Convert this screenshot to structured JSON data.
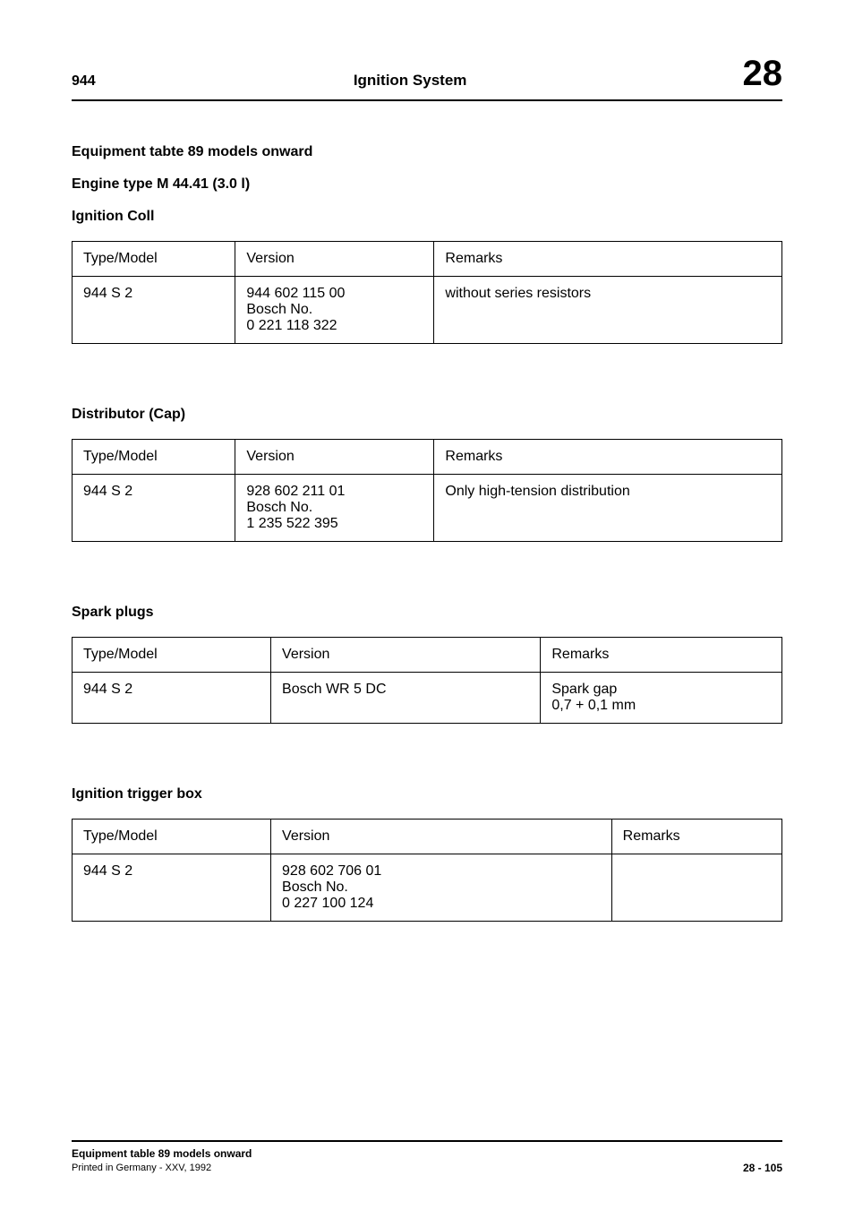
{
  "header": {
    "model_number": "944",
    "center_title": "Ignition System",
    "chapter_number": "28"
  },
  "section_heading": "Equipment tabte 89 models onward",
  "engine_line": "Engine type M 44.41 (3.0 l)",
  "tables": {
    "ignition_coil": {
      "title": "Ignition Coll",
      "columns": [
        "Type/Model",
        "Version",
        "Remarks"
      ],
      "row": {
        "type_model": "944 S 2",
        "version_line1": "944 602 115 00",
        "version_line2": "Bosch No.",
        "version_line3": "0 221 118 322",
        "remarks": "without series resistors"
      }
    },
    "distributor": {
      "title": "Distributor (Cap)",
      "columns": [
        "Type/Model",
        "Version",
        "Remarks"
      ],
      "row": {
        "type_model": "944 S 2",
        "version_line1": "928 602 211 01",
        "version_line2": "Bosch No.",
        "version_line3": "1 235 522 395",
        "remarks": "Only high-tension distribution"
      }
    },
    "spark_plugs": {
      "title": "Spark plugs",
      "columns": [
        "Type/Model",
        "Version",
        "Remarks"
      ],
      "row": {
        "type_model": "944 S 2",
        "version": "Bosch WR 5 DC",
        "remarks_line1": "Spark gap",
        "remarks_line2": "0,7 + 0,1 mm"
      }
    },
    "ignition_trigger": {
      "title": "Ignition trigger box",
      "columns": [
        "Type/Model",
        "Version",
        "Remarks"
      ],
      "row": {
        "type_model": "944 S 2",
        "version_line1": "928 602 706 01",
        "version_line2": "Bosch No.",
        "version_line3": "0 227 100 124",
        "remarks": ""
      }
    }
  },
  "footer": {
    "title": "Equipment table 89 models onward",
    "print_line": "Printed in Germany - XXV, 1992",
    "page_ref": "28 - 105"
  }
}
